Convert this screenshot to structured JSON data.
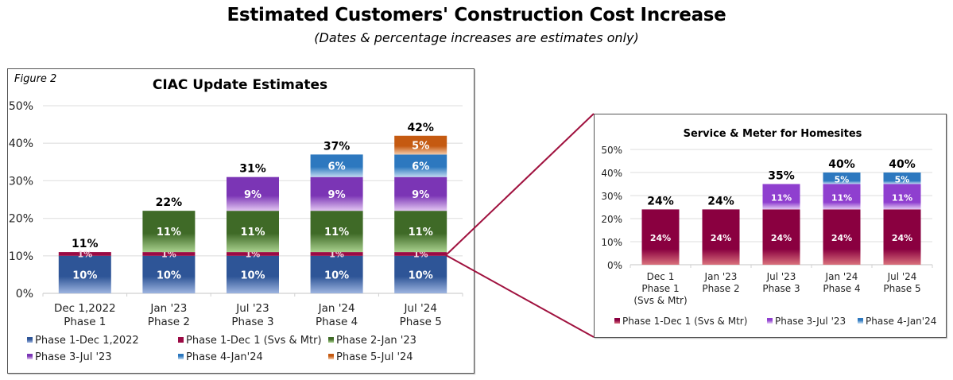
{
  "page": {
    "title": "Estimated Customers' Construction Cost Increase",
    "subtitle": "(Dates & percentage increases are estimates only)"
  },
  "chart_data": [
    {
      "type": "bar",
      "stacked": true,
      "figure_label": "Figure 2",
      "title": "CIAC Update Estimates",
      "xlabel": "",
      "ylabel": "",
      "ylim": [
        0,
        50
      ],
      "yticks": [
        "0%",
        "10%",
        "20%",
        "30%",
        "40%",
        "50%"
      ],
      "grid": true,
      "legend_position": "bottom",
      "categories": [
        [
          "Dec 1,2022",
          "Phase 1"
        ],
        [
          "Jan '23",
          "Phase 2"
        ],
        [
          "Jul '23",
          "Phase 3"
        ],
        [
          "Jan '24",
          "Phase 4"
        ],
        [
          "Jul '24",
          "Phase 5"
        ]
      ],
      "series": [
        {
          "name": "Phase 1-Dec 1,2022",
          "color": "#2e5597",
          "light": "#9db4e0",
          "values": [
            10,
            10,
            10,
            10,
            10
          ],
          "labels": [
            "10%",
            "10%",
            "10%",
            "10%",
            "10%"
          ]
        },
        {
          "name": "Phase 1-Dec 1 (Svs & Mtr)",
          "color": "#9b0a44",
          "light": "#9b0a44",
          "values": [
            1,
            1,
            1,
            1,
            1
          ],
          "labels": [
            "1%",
            "1%",
            "1%",
            "1%",
            "1%"
          ]
        },
        {
          "name": "Phase 2-Jan '23",
          "color": "#3f6a27",
          "light": "#a9d18e",
          "values": [
            0,
            11,
            11,
            11,
            11
          ],
          "labels": [
            "",
            "11%",
            "11%",
            "11%",
            "11%"
          ]
        },
        {
          "name": "Phase 3-Jul '23",
          "color": "#7b35b5",
          "light": "#e2c6f2",
          "values": [
            0,
            0,
            9,
            9,
            9
          ],
          "labels": [
            "",
            "",
            "9%",
            "9%",
            "9%"
          ]
        },
        {
          "name": "Phase 4-Jan'24",
          "color": "#2d78bf",
          "light": "#bfd9f0",
          "values": [
            0,
            0,
            0,
            6,
            6
          ],
          "labels": [
            "",
            "",
            "",
            "6%",
            "6%"
          ]
        },
        {
          "name": "Phase 5-Jul '24",
          "color": "#c55a11",
          "light": "#f4c9a8",
          "values": [
            0,
            0,
            0,
            0,
            5
          ],
          "labels": [
            "",
            "",
            "",
            "",
            "5%"
          ]
        }
      ],
      "totals": [
        "11%",
        "22%",
        "31%",
        "37%",
        "42%"
      ]
    },
    {
      "type": "bar",
      "stacked": true,
      "title": "Service & Meter for Homesites",
      "xlabel": "",
      "ylabel": "",
      "ylim": [
        0,
        50
      ],
      "yticks": [
        "0%",
        "10%",
        "20%",
        "30%",
        "40%",
        "50%"
      ],
      "grid": true,
      "legend_position": "bottom",
      "categories": [
        [
          "Dec 1",
          "Phase 1",
          "(Svs & Mtr)"
        ],
        [
          "Jan '23",
          "Phase 2"
        ],
        [
          "Jul '23",
          "Phase 3"
        ],
        [
          "Jan '24",
          "Phase 4"
        ],
        [
          "Jul '24",
          "Phase 5"
        ]
      ],
      "series": [
        {
          "name": "Phase 1-Dec 1 (Svs & Mtr)",
          "color": "#8a0040",
          "light": "#d9707c",
          "values": [
            24,
            24,
            24,
            24,
            24
          ],
          "labels": [
            "24%",
            "24%",
            "24%",
            "24%",
            "24%"
          ]
        },
        {
          "name": "Phase 3-Jul '23",
          "color": "#8f3fcf",
          "light": "#e6cdf5",
          "values": [
            0,
            0,
            11,
            11,
            11
          ],
          "labels": [
            "",
            "",
            "11%",
            "11%",
            "11%"
          ]
        },
        {
          "name": "Phase 4-Jan'24",
          "color": "#2d78bf",
          "light": "#c8e0f4",
          "values": [
            0,
            0,
            0,
            5,
            5
          ],
          "labels": [
            "",
            "",
            "",
            "5%",
            "5%"
          ]
        }
      ],
      "totals": [
        "24%",
        "24%",
        "35%",
        "40%",
        "40%"
      ]
    }
  ],
  "callout": {
    "color": "#a0123f",
    "from": "Jul '24 Phase 1-Dec 1 (Svs & Mtr) segment",
    "to": "Service & Meter for Homesites"
  }
}
